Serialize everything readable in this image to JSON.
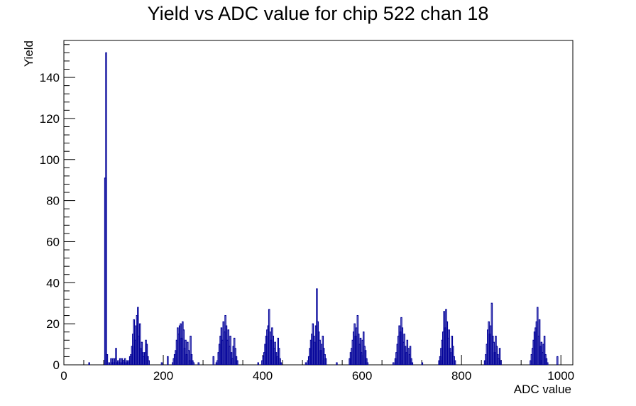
{
  "chart_data": {
    "type": "histogram",
    "title": "Yield vs ADC value for chip 522 chan 18",
    "xlabel": "ADC value",
    "ylabel": "Yield",
    "xlim": [
      0,
      1024
    ],
    "ylim": [
      0,
      158
    ],
    "x_ticks": [
      0,
      200,
      400,
      600,
      800,
      1000
    ],
    "y_ticks": [
      0,
      20,
      40,
      60,
      80,
      100,
      120,
      140
    ],
    "line_color": "#000099",
    "grid": false,
    "legend": "none",
    "bin_width": 2,
    "bins": [
      [
        50,
        1
      ],
      [
        82,
        91
      ],
      [
        84,
        152
      ],
      [
        86,
        5
      ],
      [
        90,
        1
      ],
      [
        94,
        3
      ],
      [
        96,
        1
      ],
      [
        98,
        3
      ],
      [
        100,
        1
      ],
      [
        102,
        3
      ],
      [
        104,
        8
      ],
      [
        106,
        1
      ],
      [
        108,
        2
      ],
      [
        110,
        1
      ],
      [
        112,
        3
      ],
      [
        114,
        1
      ],
      [
        116,
        3
      ],
      [
        118,
        2
      ],
      [
        120,
        1
      ],
      [
        122,
        3
      ],
      [
        124,
        1
      ],
      [
        126,
        2
      ],
      [
        128,
        1
      ],
      [
        130,
        2
      ],
      [
        132,
        4
      ],
      [
        134,
        5
      ],
      [
        136,
        9
      ],
      [
        138,
        15
      ],
      [
        140,
        22
      ],
      [
        142,
        12
      ],
      [
        144,
        19
      ],
      [
        146,
        24
      ],
      [
        148,
        28
      ],
      [
        150,
        14
      ],
      [
        152,
        20
      ],
      [
        154,
        8
      ],
      [
        156,
        11
      ],
      [
        158,
        6
      ],
      [
        160,
        4
      ],
      [
        162,
        6
      ],
      [
        164,
        12
      ],
      [
        166,
        10
      ],
      [
        168,
        4
      ],
      [
        170,
        2
      ],
      [
        196,
        1
      ],
      [
        208,
        4
      ],
      [
        218,
        1
      ],
      [
        220,
        3
      ],
      [
        222,
        5
      ],
      [
        224,
        7
      ],
      [
        226,
        12
      ],
      [
        228,
        18
      ],
      [
        230,
        15
      ],
      [
        232,
        19
      ],
      [
        234,
        20
      ],
      [
        236,
        13
      ],
      [
        238,
        21
      ],
      [
        240,
        17
      ],
      [
        242,
        8
      ],
      [
        244,
        12
      ],
      [
        246,
        5
      ],
      [
        248,
        11
      ],
      [
        250,
        7
      ],
      [
        252,
        2
      ],
      [
        254,
        14
      ],
      [
        256,
        5
      ],
      [
        258,
        2
      ],
      [
        260,
        1
      ],
      [
        270,
        1
      ],
      [
        300,
        4
      ],
      [
        306,
        1
      ],
      [
        308,
        2
      ],
      [
        310,
        6
      ],
      [
        312,
        10
      ],
      [
        314,
        14
      ],
      [
        316,
        18
      ],
      [
        318,
        12
      ],
      [
        320,
        21
      ],
      [
        322,
        16
      ],
      [
        324,
        24
      ],
      [
        326,
        19
      ],
      [
        328,
        12
      ],
      [
        330,
        17
      ],
      [
        332,
        9
      ],
      [
        334,
        14
      ],
      [
        336,
        6
      ],
      [
        338,
        3
      ],
      [
        340,
        9
      ],
      [
        342,
        13
      ],
      [
        344,
        8
      ],
      [
        346,
        4
      ],
      [
        348,
        2
      ],
      [
        390,
        1
      ],
      [
        398,
        2
      ],
      [
        400,
        4
      ],
      [
        402,
        6
      ],
      [
        404,
        10
      ],
      [
        406,
        14
      ],
      [
        408,
        17
      ],
      [
        410,
        19
      ],
      [
        412,
        27
      ],
      [
        414,
        16
      ],
      [
        416,
        12
      ],
      [
        418,
        18
      ],
      [
        420,
        14
      ],
      [
        422,
        8
      ],
      [
        424,
        11
      ],
      [
        426,
        6
      ],
      [
        428,
        4
      ],
      [
        430,
        13
      ],
      [
        432,
        8
      ],
      [
        434,
        3
      ],
      [
        436,
        1
      ],
      [
        486,
        1
      ],
      [
        490,
        2
      ],
      [
        492,
        4
      ],
      [
        494,
        8
      ],
      [
        496,
        12
      ],
      [
        498,
        15
      ],
      [
        500,
        20
      ],
      [
        502,
        14
      ],
      [
        504,
        11
      ],
      [
        506,
        19
      ],
      [
        508,
        37
      ],
      [
        510,
        21
      ],
      [
        512,
        16
      ],
      [
        514,
        12
      ],
      [
        516,
        7
      ],
      [
        518,
        10
      ],
      [
        520,
        14
      ],
      [
        522,
        8
      ],
      [
        524,
        5
      ],
      [
        526,
        3
      ],
      [
        548,
        1
      ],
      [
        574,
        3
      ],
      [
        576,
        6
      ],
      [
        578,
        8
      ],
      [
        580,
        12
      ],
      [
        582,
        16
      ],
      [
        584,
        20
      ],
      [
        586,
        14
      ],
      [
        588,
        18
      ],
      [
        590,
        24
      ],
      [
        592,
        15
      ],
      [
        594,
        10
      ],
      [
        596,
        13
      ],
      [
        598,
        6
      ],
      [
        600,
        12
      ],
      [
        602,
        16
      ],
      [
        604,
        9
      ],
      [
        606,
        7
      ],
      [
        608,
        3
      ],
      [
        610,
        1
      ],
      [
        662,
        1
      ],
      [
        666,
        3
      ],
      [
        668,
        6
      ],
      [
        670,
        10
      ],
      [
        672,
        14
      ],
      [
        674,
        19
      ],
      [
        676,
        16
      ],
      [
        678,
        23
      ],
      [
        680,
        18
      ],
      [
        682,
        11
      ],
      [
        684,
        15
      ],
      [
        686,
        9
      ],
      [
        688,
        6
      ],
      [
        690,
        12
      ],
      [
        692,
        8
      ],
      [
        694,
        5
      ],
      [
        696,
        9
      ],
      [
        698,
        3
      ],
      [
        700,
        1
      ],
      [
        720,
        1
      ],
      [
        754,
        2
      ],
      [
        756,
        4
      ],
      [
        758,
        8
      ],
      [
        760,
        12
      ],
      [
        762,
        16
      ],
      [
        764,
        26
      ],
      [
        766,
        18
      ],
      [
        768,
        27
      ],
      [
        770,
        21
      ],
      [
        772,
        13
      ],
      [
        774,
        17
      ],
      [
        776,
        8
      ],
      [
        778,
        6
      ],
      [
        780,
        14
      ],
      [
        782,
        9
      ],
      [
        784,
        4
      ],
      [
        786,
        2
      ],
      [
        846,
        2
      ],
      [
        848,
        5
      ],
      [
        850,
        10
      ],
      [
        852,
        17
      ],
      [
        854,
        21
      ],
      [
        856,
        15
      ],
      [
        858,
        19
      ],
      [
        860,
        30
      ],
      [
        862,
        14
      ],
      [
        864,
        11
      ],
      [
        866,
        6
      ],
      [
        868,
        14
      ],
      [
        870,
        9
      ],
      [
        872,
        5
      ],
      [
        874,
        3
      ],
      [
        876,
        8
      ],
      [
        878,
        2
      ],
      [
        938,
        2
      ],
      [
        940,
        5
      ],
      [
        942,
        8
      ],
      [
        944,
        12
      ],
      [
        946,
        16
      ],
      [
        948,
        18
      ],
      [
        950,
        21
      ],
      [
        952,
        28
      ],
      [
        954,
        14
      ],
      [
        956,
        22
      ],
      [
        958,
        9
      ],
      [
        960,
        11
      ],
      [
        962,
        6
      ],
      [
        964,
        10
      ],
      [
        966,
        14
      ],
      [
        968,
        5
      ],
      [
        970,
        3
      ],
      [
        972,
        1
      ],
      [
        992,
        4
      ]
    ]
  }
}
